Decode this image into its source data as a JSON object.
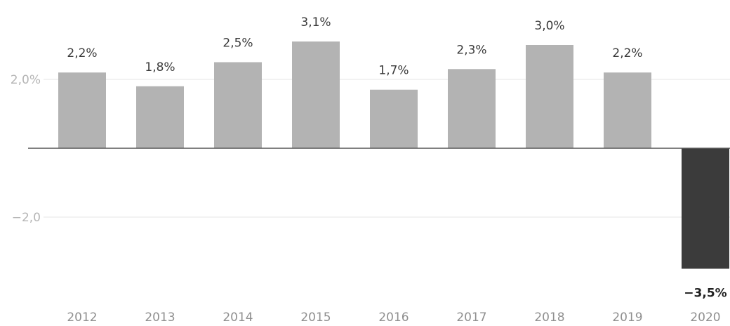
{
  "chart_data": {
    "type": "bar",
    "categories": [
      "2012",
      "2013",
      "2014",
      "2015",
      "2016",
      "2017",
      "2018",
      "2019",
      "2020"
    ],
    "values": [
      2.2,
      1.8,
      2.5,
      3.1,
      1.7,
      2.3,
      3.0,
      2.2,
      -3.5
    ],
    "data_labels": [
      "2,2%",
      "1,8%",
      "2,5%",
      "3,1%",
      "1,7%",
      "2,3%",
      "3,0%",
      "2,2%",
      "−3,5%"
    ],
    "y_ticks": [
      {
        "value": 2.0,
        "label": "2,0%"
      },
      {
        "value": -2.0,
        "label": "−2,0"
      }
    ],
    "ylim": [
      -4.5,
      4.5
    ],
    "grid": true,
    "zero_line": true,
    "colors": {
      "positive": "#b3b3b3",
      "negative": "#3b3b3b",
      "grid": "#e6e6e6",
      "zero_line": "#555555"
    },
    "title": "",
    "xlabel": "",
    "ylabel": ""
  }
}
